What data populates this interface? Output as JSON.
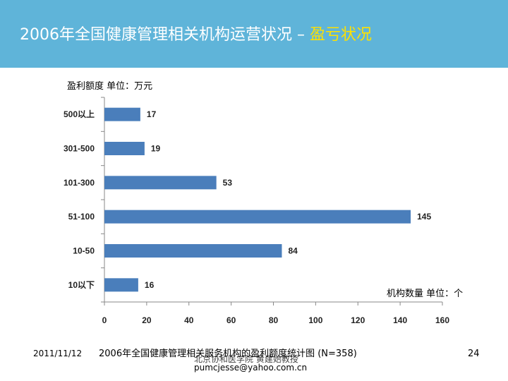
{
  "header": {
    "title_main": "2006年全国健康管理相关机构运营状况 –",
    "title_accent": "盈亏状况",
    "accent_color": "#ffe100",
    "bg_color": "#5fb4d9"
  },
  "chart_data": {
    "type": "bar",
    "orientation": "horizontal",
    "categories": [
      "500以上",
      "301-500",
      "101-300",
      "51-100",
      "10-50",
      "10以下"
    ],
    "values": [
      17,
      19,
      53,
      145,
      84,
      16
    ],
    "ylabel": "盈利额度 单位：万元",
    "xlabel": "机构数量 单位：个",
    "xlim": [
      0,
      160
    ],
    "xticks": [
      0,
      20,
      40,
      60,
      80,
      100,
      120,
      140,
      160
    ],
    "bar_color": "#4a7ebb",
    "title": "2006年全国健康管理相关服务机构的盈利额度统计图 (N=358)"
  },
  "footer": {
    "date": "2011/11/12",
    "org": "北京协和医学院 黄建始教授",
    "email": "pumcjesse@yahoo.com.cn",
    "page": "24"
  }
}
